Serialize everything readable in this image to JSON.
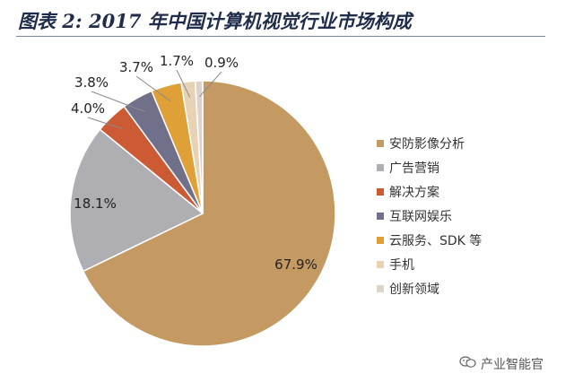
{
  "title": "图表 2: 2017 年中国计算机视觉行业市场构成",
  "watermark": "产业智能官",
  "chart_data": {
    "type": "pie",
    "title": "图表 2: 2017 年中国计算机视觉行业市场构成",
    "legend_position": "right",
    "categories": [
      "安防影像分析",
      "广告营销",
      "解决方案",
      "互联网娱乐",
      "云服务、SDK 等",
      "手机",
      "创新领域"
    ],
    "values": [
      67.9,
      18.1,
      4.0,
      3.8,
      3.7,
      1.7,
      0.9
    ],
    "labels": [
      "67.9%",
      "18.1%",
      "4.0%",
      "3.8%",
      "3.7%",
      "1.7%",
      "0.9%"
    ],
    "colors": [
      "#c49a62",
      "#aeaeb3",
      "#cc5a34",
      "#70708a",
      "#e0a038",
      "#e7d3b3",
      "#dcd3cb"
    ],
    "start_angle_deg": 0,
    "direction": "clockwise"
  }
}
